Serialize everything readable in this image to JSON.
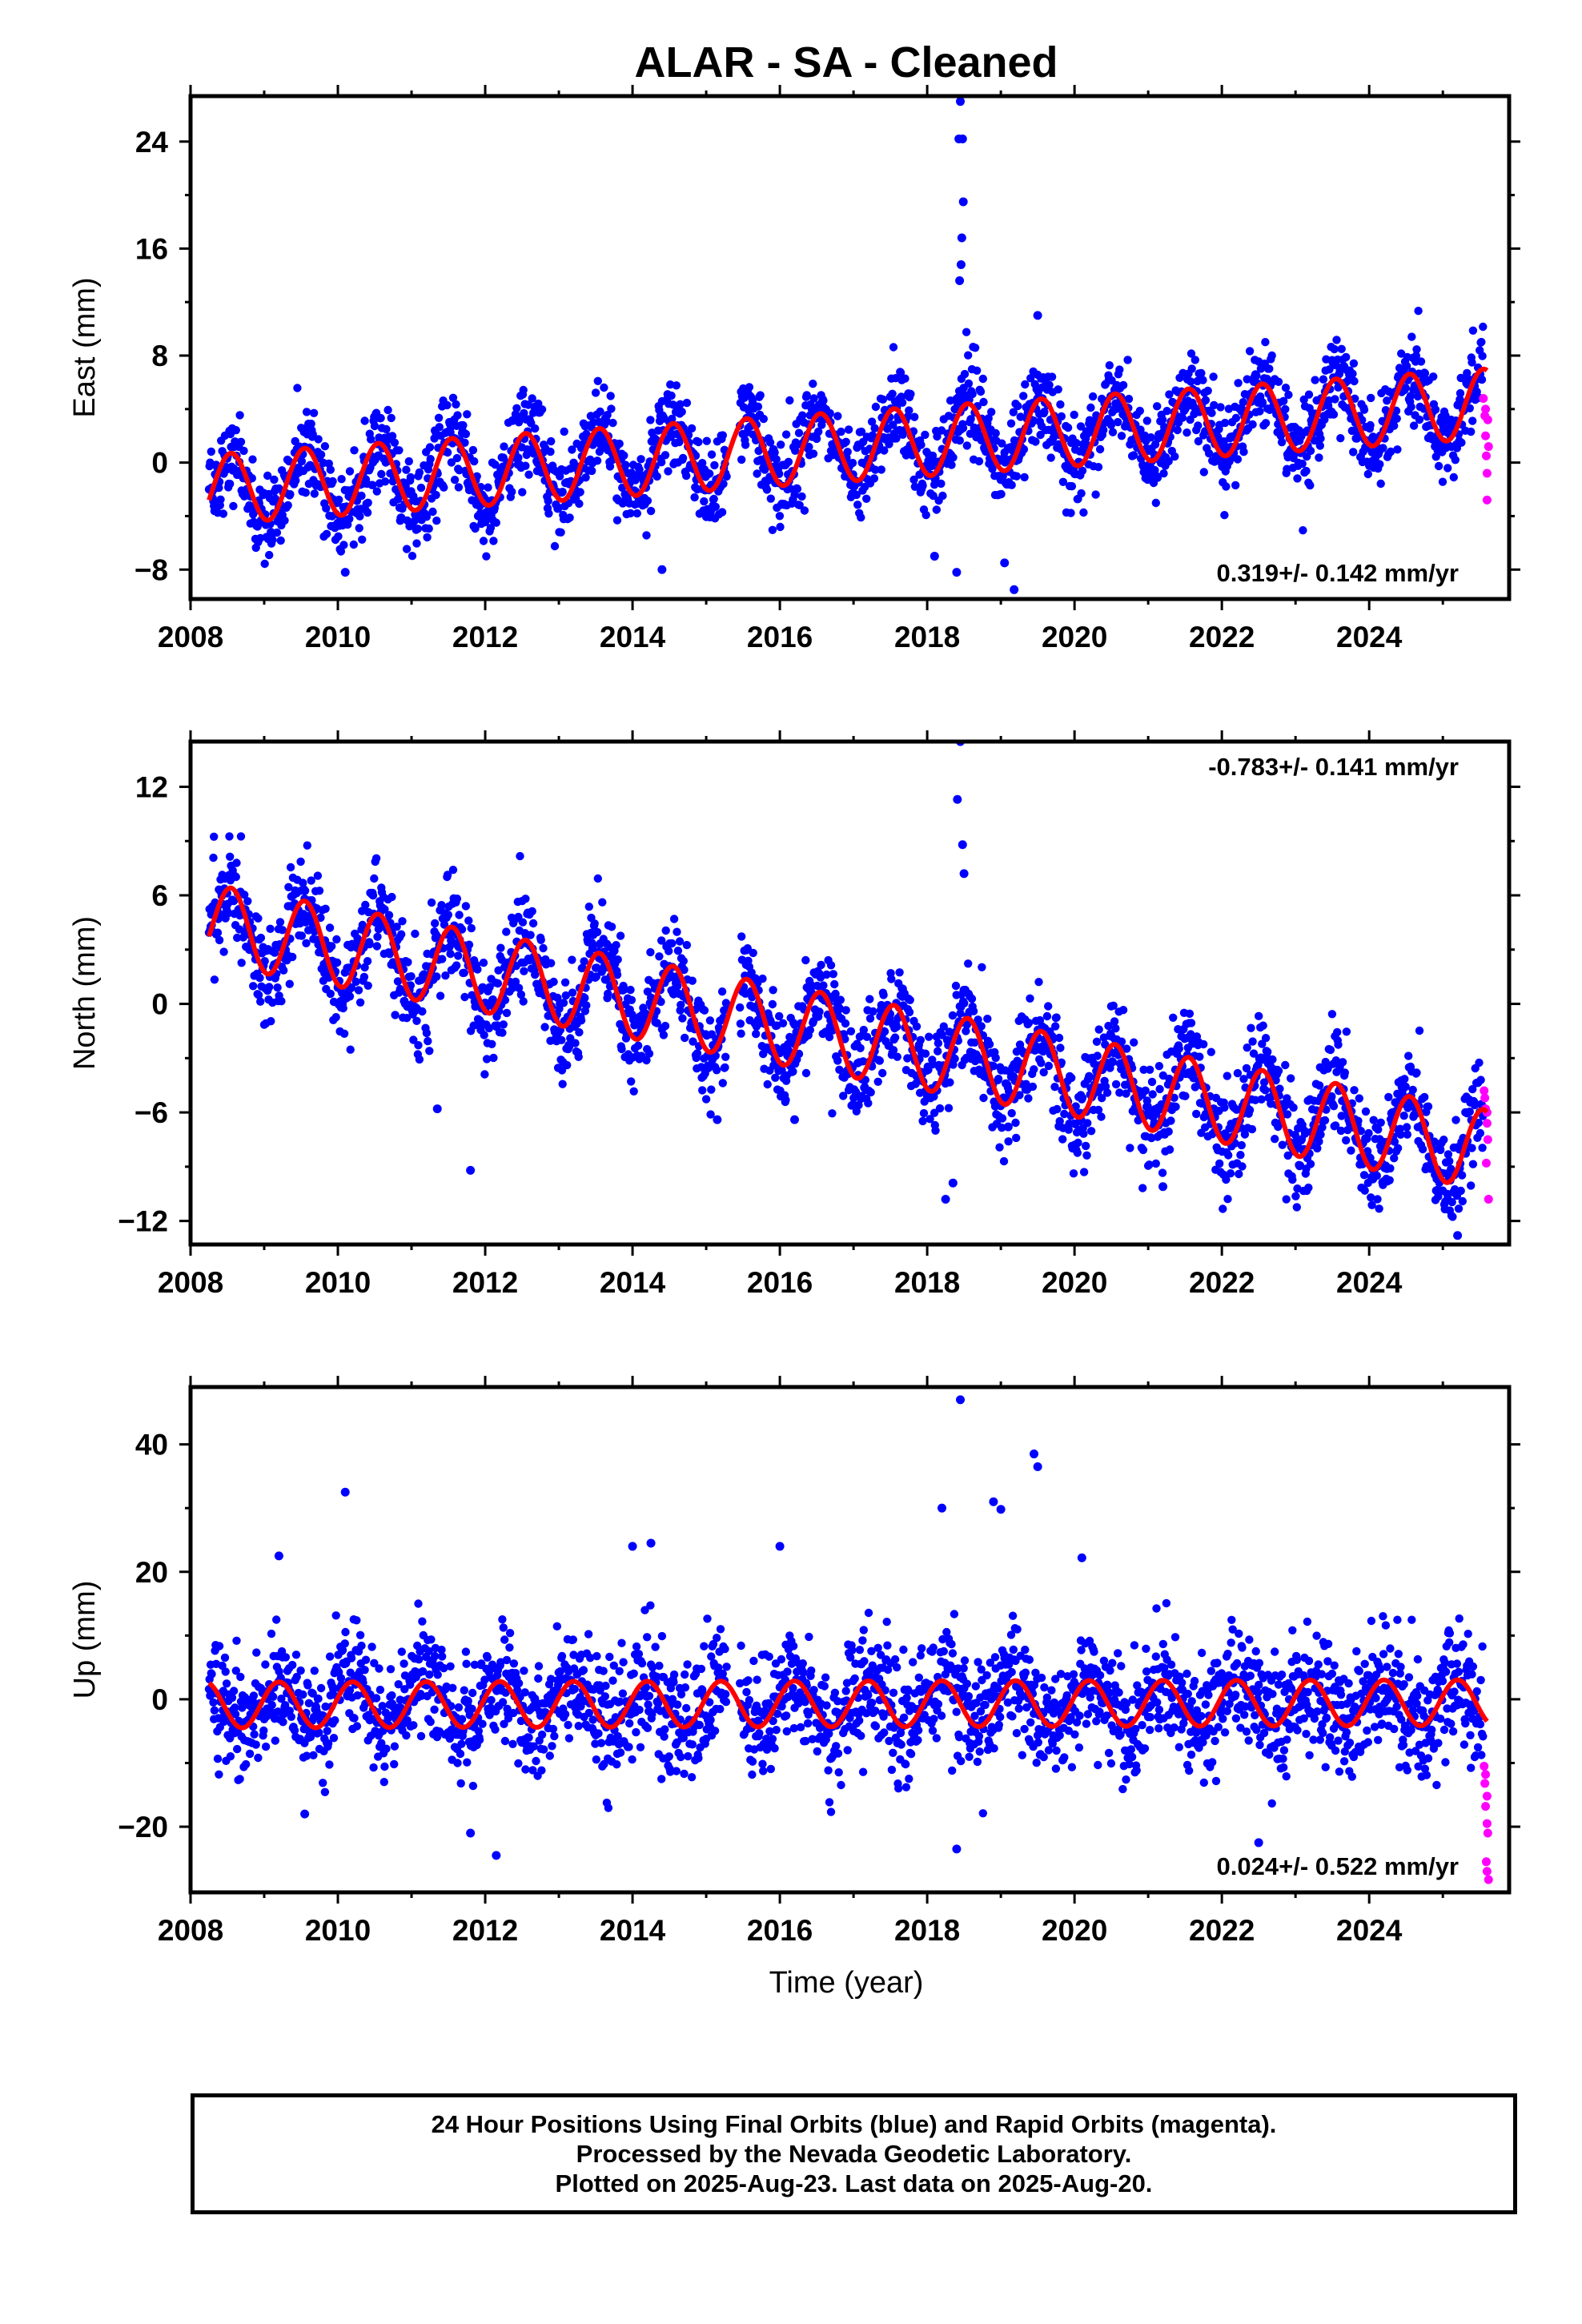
{
  "chart_data": {
    "title": "ALAR  - SA - Cleaned",
    "type": "scatter",
    "xlabel": "Time (year)",
    "xlim": [
      2008.0,
      2025.9
    ],
    "xticks": [
      2008,
      2010,
      2012,
      2014,
      2016,
      2018,
      2020,
      2022,
      2024
    ],
    "colors": {
      "final": "#0000ff",
      "rapid": "#ff00ff",
      "model": "#ff0000"
    },
    "panels": [
      {
        "id": "east",
        "ylabel": "East (mm)",
        "ylim": [
          -10.2,
          27.4
        ],
        "yticks": [
          24,
          16,
          8,
          0,
          -8
        ],
        "rate_label": "0.319+/- 0.142 mm/yr",
        "rate_position": "bottom-right",
        "model": {
          "trend_at_2008": -2.1,
          "trend_slope": 0.37,
          "annual_amplitude": 2.6,
          "annual_peak_phase": 0.55,
          "noise_sd": 1.6
        },
        "outliers": [
          [
            2018.45,
            27.0
          ],
          [
            2018.43,
            24.2
          ],
          [
            2018.48,
            24.2
          ],
          [
            2018.49,
            19.5
          ],
          [
            2018.47,
            16.8
          ],
          [
            2018.46,
            14.8
          ],
          [
            2018.44,
            13.6
          ],
          [
            2019.5,
            11.0
          ],
          [
            2019.18,
            -9.5
          ],
          [
            2018.4,
            -8.2
          ],
          [
            2010.1,
            -8.2
          ],
          [
            2014.4,
            -8.0
          ],
          [
            2019.05,
            -7.5
          ],
          [
            2018.1,
            -7.0
          ]
        ],
        "rapid": [
          [
            2025.55,
            4.8
          ],
          [
            2025.57,
            3.5
          ],
          [
            2025.58,
            2.0
          ],
          [
            2025.59,
            0.5
          ],
          [
            2025.6,
            -0.8
          ],
          [
            2025.62,
            1.2
          ],
          [
            2025.6,
            -2.8
          ],
          [
            2025.61,
            3.2
          ],
          [
            2025.58,
            4.0
          ]
        ]
      },
      {
        "id": "north",
        "ylabel": "North (mm)",
        "ylim": [
          -13.3,
          14.5
        ],
        "yticks": [
          12,
          6,
          0,
          -6,
          -12
        ],
        "rate_label": "-0.783+/- 0.141 mm/yr",
        "rate_position": "top-right",
        "model": {
          "trend_at_2008": 4.6,
          "trend_slope": -0.72,
          "annual_amplitude": 2.2,
          "annual_peak_phase": 0.55,
          "noise_sd": 1.4
        },
        "outliers": [
          [
            2018.45,
            14.5
          ],
          [
            2018.41,
            11.3
          ],
          [
            2018.48,
            8.8
          ],
          [
            2018.5,
            7.2
          ],
          [
            2011.35,
            -5.8
          ],
          [
            2011.8,
            -9.2
          ],
          [
            2018.35,
            -9.9
          ],
          [
            2018.25,
            -10.8
          ],
          [
            2025.2,
            -12.8
          ],
          [
            2015.15,
            -6.4
          ],
          [
            2016.2,
            -6.4
          ],
          [
            2019.1,
            -6.8
          ],
          [
            2021.2,
            -10.1
          ]
        ],
        "rapid": [
          [
            2025.56,
            -4.8
          ],
          [
            2025.58,
            -5.8
          ],
          [
            2025.6,
            -6.6
          ],
          [
            2025.61,
            -7.5
          ],
          [
            2025.59,
            -8.8
          ],
          [
            2025.62,
            -10.8
          ],
          [
            2025.57,
            -5.2
          ],
          [
            2025.6,
            -6.0
          ]
        ]
      },
      {
        "id": "up",
        "ylabel": "Up (mm)",
        "ylim": [
          -30.3,
          49.0
        ],
        "yticks": [
          40,
          20,
          0,
          -20
        ],
        "rate_label": "0.024+/- 0.522 mm/yr",
        "rate_position": "bottom-right",
        "model": {
          "trend_at_2008": -0.9,
          "trend_slope": 0.02,
          "annual_amplitude": 3.6,
          "annual_peak_phase": 0.2,
          "noise_sd": 4.6
        },
        "outliers": [
          [
            2018.45,
            47.0
          ],
          [
            2010.1,
            32.5
          ],
          [
            2019.45,
            38.5
          ],
          [
            2019.5,
            36.5
          ],
          [
            2018.9,
            31.0
          ],
          [
            2019.0,
            29.8
          ],
          [
            2018.2,
            30.0
          ],
          [
            2014.0,
            24.0
          ],
          [
            2014.25,
            24.5
          ],
          [
            2016.0,
            24.0
          ],
          [
            2009.2,
            22.5
          ],
          [
            2020.1,
            22.2
          ],
          [
            2011.8,
            -21.0
          ],
          [
            2012.15,
            -24.5
          ],
          [
            2018.4,
            -23.5
          ],
          [
            2022.5,
            -22.5
          ],
          [
            2009.55,
            -18.0
          ]
        ],
        "rapid": [
          [
            2025.56,
            -10.5
          ],
          [
            2025.57,
            -13.2
          ],
          [
            2025.58,
            -16.8
          ],
          [
            2025.6,
            -19.5
          ],
          [
            2025.61,
            -21.0
          ],
          [
            2025.59,
            -25.5
          ],
          [
            2025.6,
            -27.0
          ],
          [
            2025.62,
            -28.3
          ],
          [
            2025.58,
            -11.8
          ],
          [
            2025.6,
            -15.2
          ]
        ]
      }
    ]
  },
  "footer": {
    "line1": "24 Hour Positions Using Final Orbits (blue) and Rapid Orbits (magenta).",
    "line2": "Processed by the Nevada Geodetic Laboratory.",
    "line3": "Plotted on 2025-Aug-23. Last data on 2025-Aug-20."
  }
}
